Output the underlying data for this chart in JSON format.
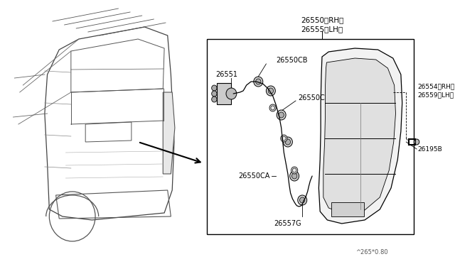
{
  "bg_color": "#ffffff",
  "lc": "#000000",
  "gray": "#888888",
  "light_gray": "#cccccc",
  "footnote": "^265*0.80",
  "label_26550RH": "26550（RH）",
  "label_26555LH": "26555（LH）",
  "label_26551": "26551",
  "label_26550CB": "26550CB",
  "label_26550C": "26550C",
  "label_26550CA": "26550CA",
  "label_26557G": "26557G",
  "label_26554RH": "26554（RH）",
  "label_26559LH": "26559（LH）",
  "label_26195B": "26195B"
}
